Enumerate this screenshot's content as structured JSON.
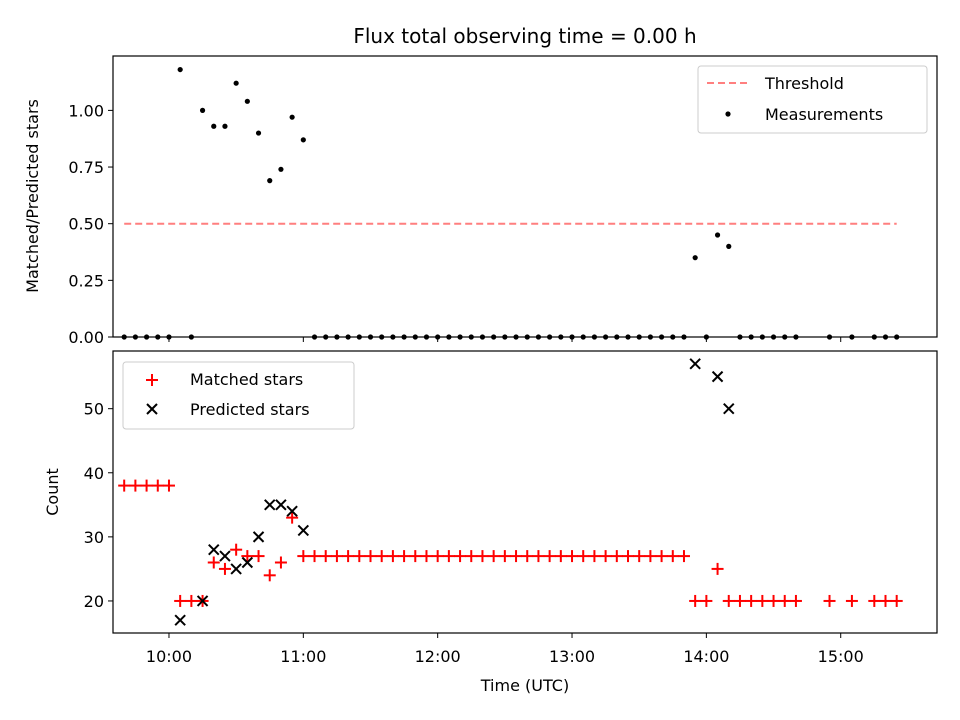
{
  "chart_data": [
    {
      "type": "scatter",
      "title": "Flux total observing time = 0.00 h",
      "xlabel": "",
      "ylabel": "Matched/Predicted stars",
      "xlim": [
        "09:35",
        "15:43"
      ],
      "ylim": [
        0,
        1.24
      ],
      "y_ticks": [
        "0.00",
        "0.25",
        "0.50",
        "0.75",
        "1.00"
      ],
      "legend_position": "top-right",
      "legend": [
        "Threshold",
        "Measurements"
      ],
      "threshold": {
        "name": "Threshold",
        "value": 0.5,
        "x_range": [
          "09:40",
          "15:25"
        ],
        "color": "#ff7f7f",
        "style": "dashed"
      },
      "series": [
        {
          "name": "Measurements",
          "marker": "dot",
          "color": "#000000",
          "x": [
            "09:40",
            "09:45",
            "09:50",
            "09:55",
            "10:00",
            "10:05",
            "10:10",
            "10:15",
            "10:20",
            "10:25",
            "10:30",
            "10:35",
            "10:40",
            "10:45",
            "10:50",
            "10:55",
            "11:00",
            "11:05",
            "11:10",
            "11:15",
            "11:20",
            "11:25",
            "11:30",
            "11:35",
            "11:40",
            "11:45",
            "11:50",
            "11:55",
            "12:00",
            "12:05",
            "12:10",
            "12:15",
            "12:20",
            "12:25",
            "12:30",
            "12:35",
            "12:40",
            "12:45",
            "12:50",
            "12:55",
            "13:00",
            "13:05",
            "13:10",
            "13:15",
            "13:20",
            "13:25",
            "13:30",
            "13:35",
            "13:40",
            "13:45",
            "13:50",
            "13:55",
            "14:00",
            "14:05",
            "14:10",
            "14:15",
            "14:20",
            "14:25",
            "14:30",
            "14:35",
            "14:40",
            "14:55",
            "15:05",
            "15:15",
            "15:20",
            "15:25"
          ],
          "y": [
            0,
            0,
            0,
            0,
            0,
            1.18,
            0,
            1.0,
            0.93,
            0.93,
            1.12,
            1.04,
            0.9,
            0.69,
            0.74,
            0.97,
            0.87,
            0,
            0,
            0,
            0,
            0,
            0,
            0,
            0,
            0,
            0,
            0,
            0,
            0,
            0,
            0,
            0,
            0,
            0,
            0,
            0,
            0,
            0,
            0,
            0,
            0,
            0,
            0,
            0,
            0,
            0,
            0,
            0,
            0,
            0,
            0.35,
            0,
            0.45,
            0.4,
            0,
            0,
            0,
            0,
            0,
            0,
            0,
            0,
            0,
            0,
            0
          ]
        }
      ]
    },
    {
      "type": "scatter",
      "title": "",
      "xlabel": "Time (UTC)",
      "ylabel": "Count",
      "xlim": [
        "09:35",
        "15:43"
      ],
      "ylim": [
        15,
        59
      ],
      "y_ticks": [
        "20",
        "30",
        "40",
        "50"
      ],
      "x_ticks": [
        "10:00",
        "11:00",
        "12:00",
        "13:00",
        "14:00",
        "15:00"
      ],
      "legend_position": "top-left",
      "legend": [
        "Matched stars",
        "Predicted stars"
      ],
      "series": [
        {
          "name": "Matched stars",
          "marker": "plus",
          "color": "#ff0000",
          "x": [
            "09:40",
            "09:45",
            "09:50",
            "09:55",
            "10:00",
            "10:05",
            "10:10",
            "10:15",
            "10:20",
            "10:25",
            "10:30",
            "10:35",
            "10:40",
            "10:45",
            "10:50",
            "10:55",
            "11:00",
            "11:05",
            "11:10",
            "11:15",
            "11:20",
            "11:25",
            "11:30",
            "11:35",
            "11:40",
            "11:45",
            "11:50",
            "11:55",
            "12:00",
            "12:05",
            "12:10",
            "12:15",
            "12:20",
            "12:25",
            "12:30",
            "12:35",
            "12:40",
            "12:45",
            "12:50",
            "12:55",
            "13:00",
            "13:05",
            "13:10",
            "13:15",
            "13:20",
            "13:25",
            "13:30",
            "13:35",
            "13:40",
            "13:45",
            "13:50",
            "13:55",
            "14:00",
            "14:05",
            "14:10",
            "14:15",
            "14:20",
            "14:25",
            "14:30",
            "14:35",
            "14:40",
            "14:55",
            "15:05",
            "15:15",
            "15:20",
            "15:25"
          ],
          "y": [
            38,
            38,
            38,
            38,
            38,
            20,
            20,
            20,
            26,
            25,
            28,
            27,
            27,
            24,
            26,
            33,
            27,
            27,
            27,
            27,
            27,
            27,
            27,
            27,
            27,
            27,
            27,
            27,
            27,
            27,
            27,
            27,
            27,
            27,
            27,
            27,
            27,
            27,
            27,
            27,
            27,
            27,
            27,
            27,
            27,
            27,
            27,
            27,
            27,
            27,
            27,
            20,
            20,
            25,
            20,
            20,
            20,
            20,
            20,
            20,
            20,
            20,
            20,
            20,
            20,
            20
          ]
        },
        {
          "name": "Predicted stars",
          "marker": "x",
          "color": "#000000",
          "x": [
            "10:05",
            "10:15",
            "10:20",
            "10:25",
            "10:30",
            "10:35",
            "10:40",
            "10:45",
            "10:50",
            "10:55",
            "11:00",
            "13:55",
            "14:05",
            "14:10"
          ],
          "y": [
            17,
            20,
            28,
            27,
            25,
            26,
            30,
            35,
            35,
            34,
            31,
            57,
            55,
            50
          ]
        }
      ]
    }
  ]
}
